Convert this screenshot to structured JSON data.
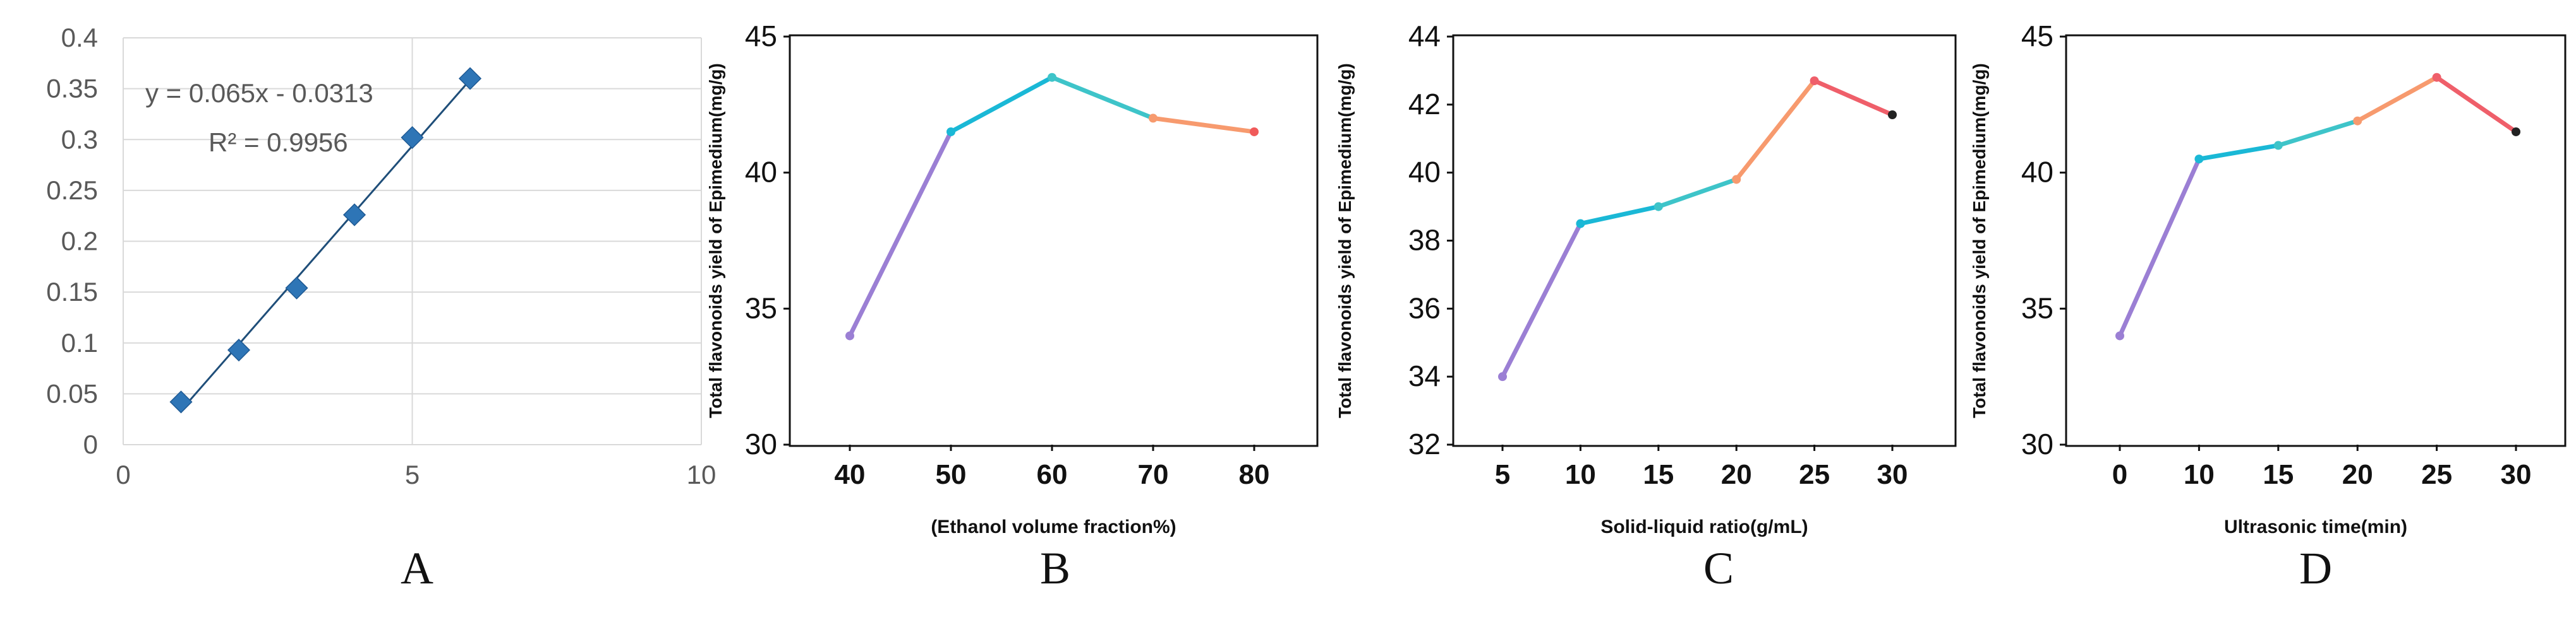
{
  "chart_data": [
    {
      "panel": "A",
      "type": "scatter",
      "title": "",
      "xlabel": "",
      "ylabel": "",
      "x": [
        1,
        2,
        3,
        4,
        5,
        6
      ],
      "y": [
        0.042,
        0.093,
        0.154,
        0.226,
        0.302,
        0.36
      ],
      "trendline": {
        "slope": 0.065,
        "intercept": -0.0313
      },
      "equation_label": "y = 0.065x - 0.0313",
      "r2_label": "R² = 0.9956",
      "xlim": [
        0,
        10
      ],
      "ylim": [
        0,
        0.4
      ],
      "x_ticks": [
        "0",
        "5",
        "10"
      ],
      "y_ticks": [
        "0",
        "0.05",
        "0.1",
        "0.15",
        "0.2",
        "0.25",
        "0.3",
        "0.35",
        "0.4"
      ],
      "grid": true,
      "series_color": "#2e75b6",
      "line_color": "#1f4e79"
    },
    {
      "panel": "B",
      "type": "line",
      "xlabel": "(Ethanol volume fraction%)",
      "ylabel": "Total flavonoids yield of Epimedium(mg/g)",
      "categories": [
        "40",
        "50",
        "60",
        "70",
        "80"
      ],
      "values": [
        34.0,
        41.5,
        43.5,
        42.0,
        41.5
      ],
      "ylim": [
        30,
        45
      ],
      "y_ticks": [
        "30",
        "35",
        "40",
        "45"
      ],
      "segment_colors": [
        "#9b7fd4",
        "#1ab8d6",
        "#3ec4c9",
        "#f79a6e"
      ],
      "end_color": "#f05a5a"
    },
    {
      "panel": "C",
      "type": "line",
      "xlabel": "Solid-liquid ratio(g/mL)",
      "ylabel": "Total flavonoids yield of Epimedium(mg/g)",
      "categories": [
        "5",
        "10",
        "15",
        "20",
        "25",
        "30"
      ],
      "values": [
        34.0,
        38.5,
        39.0,
        39.8,
        42.7,
        41.7
      ],
      "ylim": [
        32,
        44
      ],
      "y_ticks": [
        "32",
        "34",
        "36",
        "38",
        "40",
        "42",
        "44"
      ],
      "segment_colors": [
        "#9b7fd4",
        "#1ab8d6",
        "#3ec4c9",
        "#f79a6e",
        "#ef5f6a"
      ],
      "end_color": "#222222"
    },
    {
      "panel": "D",
      "type": "line",
      "xlabel": "Ultrasonic time(min)",
      "ylabel": "Total flavonoids yield of Epimedium(mg/g)",
      "categories": [
        "0",
        "10",
        "15",
        "20",
        "25",
        "30"
      ],
      "values": [
        34.0,
        40.5,
        41.0,
        41.9,
        43.5,
        41.5
      ],
      "ylim": [
        30,
        45
      ],
      "y_ticks": [
        "30",
        "35",
        "40",
        "45"
      ],
      "segment_colors": [
        "#9b7fd4",
        "#1ab8d6",
        "#3ec4c9",
        "#f79a6e",
        "#ef5f6a"
      ],
      "end_color": "#222222"
    }
  ],
  "panel_labels": [
    "A",
    "B",
    "C",
    "D"
  ]
}
